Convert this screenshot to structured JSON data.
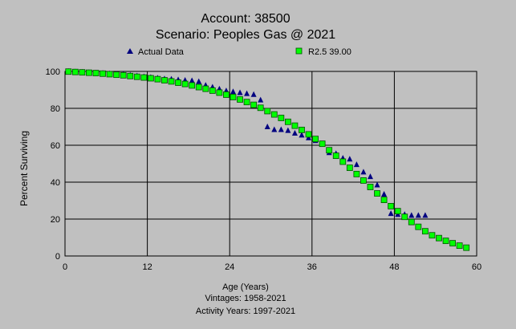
{
  "chart_data": {
    "type": "scatter",
    "title": "Account: 38500",
    "subtitle": "Scenario: Peoples Gas @ 2021",
    "xlabel": "Age (Years)",
    "ylabel": "Percent Surviving",
    "footer_lines": [
      "Vintages: 1958-2021",
      "Activity Years: 1997-2021"
    ],
    "xlim": [
      0,
      60
    ],
    "ylim": [
      0,
      100
    ],
    "xticks": [
      0,
      12,
      24,
      36,
      48,
      60
    ],
    "yticks": [
      0,
      20,
      40,
      60,
      80,
      100
    ],
    "grid": true,
    "legend_position": "top",
    "series": [
      {
        "name": "Actual Data",
        "marker": "triangle",
        "color": "#00007f",
        "x": [
          0.5,
          1.5,
          2.5,
          3.5,
          4.5,
          5.5,
          6.5,
          7.5,
          8.5,
          9.5,
          10.5,
          11.5,
          12.5,
          13.5,
          14.5,
          15.5,
          16.5,
          17.5,
          18.5,
          19.5,
          20.5,
          21.5,
          22.5,
          23.5,
          24.5,
          25.5,
          26.5,
          27.5,
          28.5,
          29.5,
          30.5,
          31.5,
          32.5,
          33.5,
          34.5,
          35.5,
          36.5,
          37.5,
          38.5,
          39.5,
          40.5,
          41.5,
          42.5,
          43.5,
          44.5,
          45.5,
          46.5,
          47.5,
          48.5,
          49.5,
          50.5,
          51.5,
          52.5
        ],
        "y": [
          100,
          99.8,
          99.6,
          99.4,
          99.2,
          99.0,
          98.8,
          98.6,
          98.4,
          98.0,
          97.6,
          97.2,
          96.8,
          96.4,
          96.0,
          95.8,
          95.5,
          95.2,
          95.0,
          94.5,
          92.5,
          91.5,
          90.5,
          89.5,
          89.0,
          88.5,
          88.0,
          87.5,
          84.5,
          70.0,
          68.5,
          68.5,
          68.0,
          66.5,
          65.5,
          64.0,
          62.5,
          60.5,
          56.0,
          55.5,
          53.0,
          52.5,
          49.5,
          45.5,
          43.0,
          38.5,
          33.5,
          23.0,
          22.5,
          22.5,
          22.0,
          22.0,
          22.0
        ]
      },
      {
        "name": "R2.5 39.00",
        "marker": "square",
        "color": "#00ff00",
        "x": [
          0.5,
          1.5,
          2.5,
          3.5,
          4.5,
          5.5,
          6.5,
          7.5,
          8.5,
          9.5,
          10.5,
          11.5,
          12.5,
          13.5,
          14.5,
          15.5,
          16.5,
          17.5,
          18.5,
          19.5,
          20.5,
          21.5,
          22.5,
          23.5,
          24.5,
          25.5,
          26.5,
          27.5,
          28.5,
          29.5,
          30.5,
          31.5,
          32.5,
          33.5,
          34.5,
          35.5,
          36.5,
          37.5,
          38.5,
          39.5,
          40.5,
          41.5,
          42.5,
          43.5,
          44.5,
          45.5,
          46.5,
          47.5,
          48.5,
          49.5,
          50.5,
          51.5,
          52.5,
          53.5,
          54.5,
          55.5,
          56.5,
          57.5,
          58.5
        ],
        "y": [
          99.9,
          99.7,
          99.5,
          99.3,
          99.1,
          98.8,
          98.5,
          98.2,
          97.9,
          97.5,
          97.1,
          96.7,
          96.3,
          95.8,
          95.2,
          94.6,
          93.9,
          93.2,
          92.4,
          91.5,
          90.6,
          89.6,
          88.5,
          87.4,
          86.1,
          84.8,
          83.4,
          81.9,
          80.3,
          78.5,
          76.7,
          74.8,
          72.7,
          70.6,
          68.3,
          65.9,
          63.4,
          60.8,
          57.3,
          54.3,
          51.1,
          47.8,
          44.4,
          40.9,
          37.4,
          33.9,
          30.4,
          27.0,
          24.3,
          21.2,
          18.4,
          15.8,
          13.4,
          11.2,
          9.7,
          8.2,
          6.9,
          5.6,
          4.5
        ]
      }
    ]
  }
}
